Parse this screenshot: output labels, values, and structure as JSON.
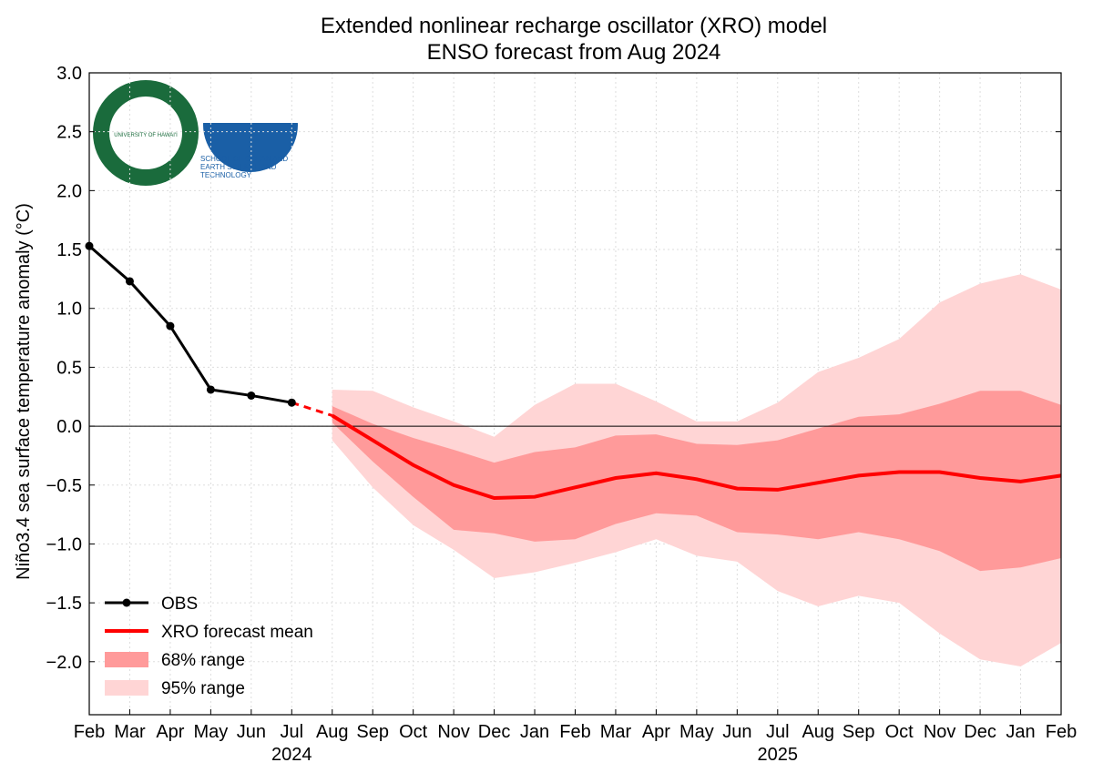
{
  "chart_data": {
    "type": "line",
    "title": "Extended nonlinear recharge oscillator (XRO) model",
    "subtitle": "ENSO forecast from Aug 2024",
    "y_label": "Niño3.4 sea surface temperature anomaly (°C)",
    "logos": {
      "university": "UNIVERSITY OF HAWAI'I",
      "school": "SCHOOL OF OCEAN AND EARTH SCIENCE AND TECHNOLOGY"
    },
    "categories": [
      "Feb",
      "Mar",
      "Apr",
      "May",
      "Jun",
      "Jul",
      "Aug",
      "Sep",
      "Oct",
      "Nov",
      "Dec",
      "Jan",
      "Feb",
      "Mar",
      "Apr",
      "May",
      "Jun",
      "Jul",
      "Aug",
      "Sep",
      "Oct",
      "Nov",
      "Dec",
      "Jan",
      "Feb"
    ],
    "year_labels": [
      null,
      null,
      null,
      null,
      null,
      "2024",
      null,
      null,
      null,
      null,
      null,
      null,
      null,
      null,
      null,
      null,
      null,
      "2025",
      null,
      null,
      null,
      null,
      null,
      null,
      null
    ],
    "ylim": [
      -2.45,
      3.0
    ],
    "yticks": [
      {
        "value": 3,
        "label": "3.0"
      },
      2.5,
      {
        "value": 2,
        "label": "2.0"
      },
      1.5,
      {
        "value": 1,
        "label": "1.0"
      },
      0.5,
      {
        "value": 0,
        "label": "0.0"
      },
      {
        "value": -0.5,
        "label": "−0.5"
      },
      {
        "value": -1,
        "label": "−1.0"
      },
      {
        "value": -1.5,
        "label": "−1.5"
      },
      {
        "value": -2,
        "label": "−2.0"
      }
    ],
    "grid": true,
    "legend": "lower left",
    "bands": [
      {
        "name": "95% range",
        "color": "#ffd5d5",
        "upper": [
          null,
          null,
          null,
          null,
          null,
          null,
          0.31,
          0.3,
          0.16,
          0.04,
          -0.09,
          0.18,
          0.36,
          0.36,
          0.21,
          0.04,
          0.04,
          0.2,
          0.46,
          0.58,
          0.74,
          1.05,
          1.21,
          1.29,
          1.16
        ],
        "lower": [
          null,
          null,
          null,
          null,
          null,
          null,
          -0.12,
          -0.52,
          -0.84,
          -1.05,
          -1.29,
          -1.24,
          -1.16,
          -1.07,
          -0.96,
          -1.1,
          -1.15,
          -1.4,
          -1.53,
          -1.44,
          -1.5,
          -1.76,
          -1.98,
          -2.04,
          -1.84
        ]
      },
      {
        "name": "68% range",
        "color": "#ff9a9a",
        "upper": [
          null,
          null,
          null,
          null,
          null,
          null,
          0.17,
          0.02,
          -0.1,
          -0.2,
          -0.31,
          -0.22,
          -0.18,
          -0.08,
          -0.07,
          -0.15,
          -0.16,
          -0.12,
          -0.02,
          0.08,
          0.1,
          0.19,
          0.3,
          0.3,
          0.18
        ],
        "lower": [
          null,
          null,
          null,
          null,
          null,
          null,
          0.03,
          -0.3,
          -0.6,
          -0.88,
          -0.91,
          -0.98,
          -0.96,
          -0.83,
          -0.74,
          -0.76,
          -0.9,
          -0.92,
          -0.96,
          -0.9,
          -0.96,
          -1.06,
          -1.23,
          -1.2,
          -1.12
        ]
      }
    ],
    "series": [
      {
        "name": "OBS",
        "color": "#000000",
        "values": [
          1.53,
          1.23,
          0.85,
          0.31,
          0.26,
          0.2,
          null,
          null,
          null,
          null,
          null,
          null,
          null,
          null,
          null,
          null,
          null,
          null,
          null,
          null,
          null,
          null,
          null,
          null,
          null
        ]
      },
      {
        "name": "XRO forecast mean",
        "color": "#ff0000",
        "values": [
          null,
          null,
          null,
          null,
          null,
          null,
          0.09,
          -0.12,
          -0.33,
          -0.5,
          -0.61,
          -0.6,
          -0.52,
          -0.44,
          -0.4,
          -0.45,
          -0.53,
          -0.54,
          -0.48,
          -0.42,
          -0.39,
          -0.39,
          -0.44,
          -0.47,
          -0.42
        ]
      }
    ]
  }
}
